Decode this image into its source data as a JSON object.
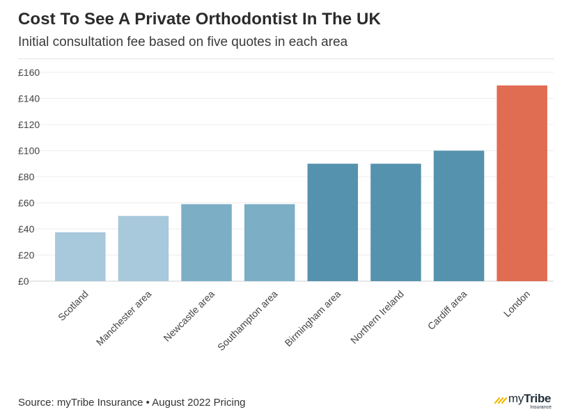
{
  "chart_data": {
    "type": "bar",
    "title": "Cost To See A Private Orthodontist In The UK",
    "subtitle": "Initial consultation fee based on five quotes in each area",
    "xlabel": "",
    "ylabel": "",
    "ylim": [
      0,
      160
    ],
    "yticks": [
      0,
      20,
      40,
      60,
      80,
      100,
      120,
      140,
      160
    ],
    "ytick_labels": [
      "£0",
      "£20",
      "£40",
      "£60",
      "£80",
      "£100",
      "£120",
      "£140",
      "£160"
    ],
    "categories": [
      "Scotland",
      "Manchester area",
      "Newcastle area",
      "Southampton area",
      "Birmingham area",
      "Northern Ireland",
      "Cardiff area",
      "London"
    ],
    "values": [
      37.5,
      50,
      59,
      59,
      90,
      90,
      100,
      150
    ],
    "colors": [
      "#a8c8db",
      "#a8c8db",
      "#7caec6",
      "#7caec6",
      "#5592ad",
      "#5592ad",
      "#5592ad",
      "#e06c52"
    ],
    "grid": true
  },
  "footer": {
    "source": "Source: myTribe Insurance • August 2022 Pricing"
  },
  "logo": {
    "brand_prefix": "my",
    "brand_name": "Tribe",
    "brand_sub": "Insurance",
    "mark_color": "#f5b800"
  }
}
